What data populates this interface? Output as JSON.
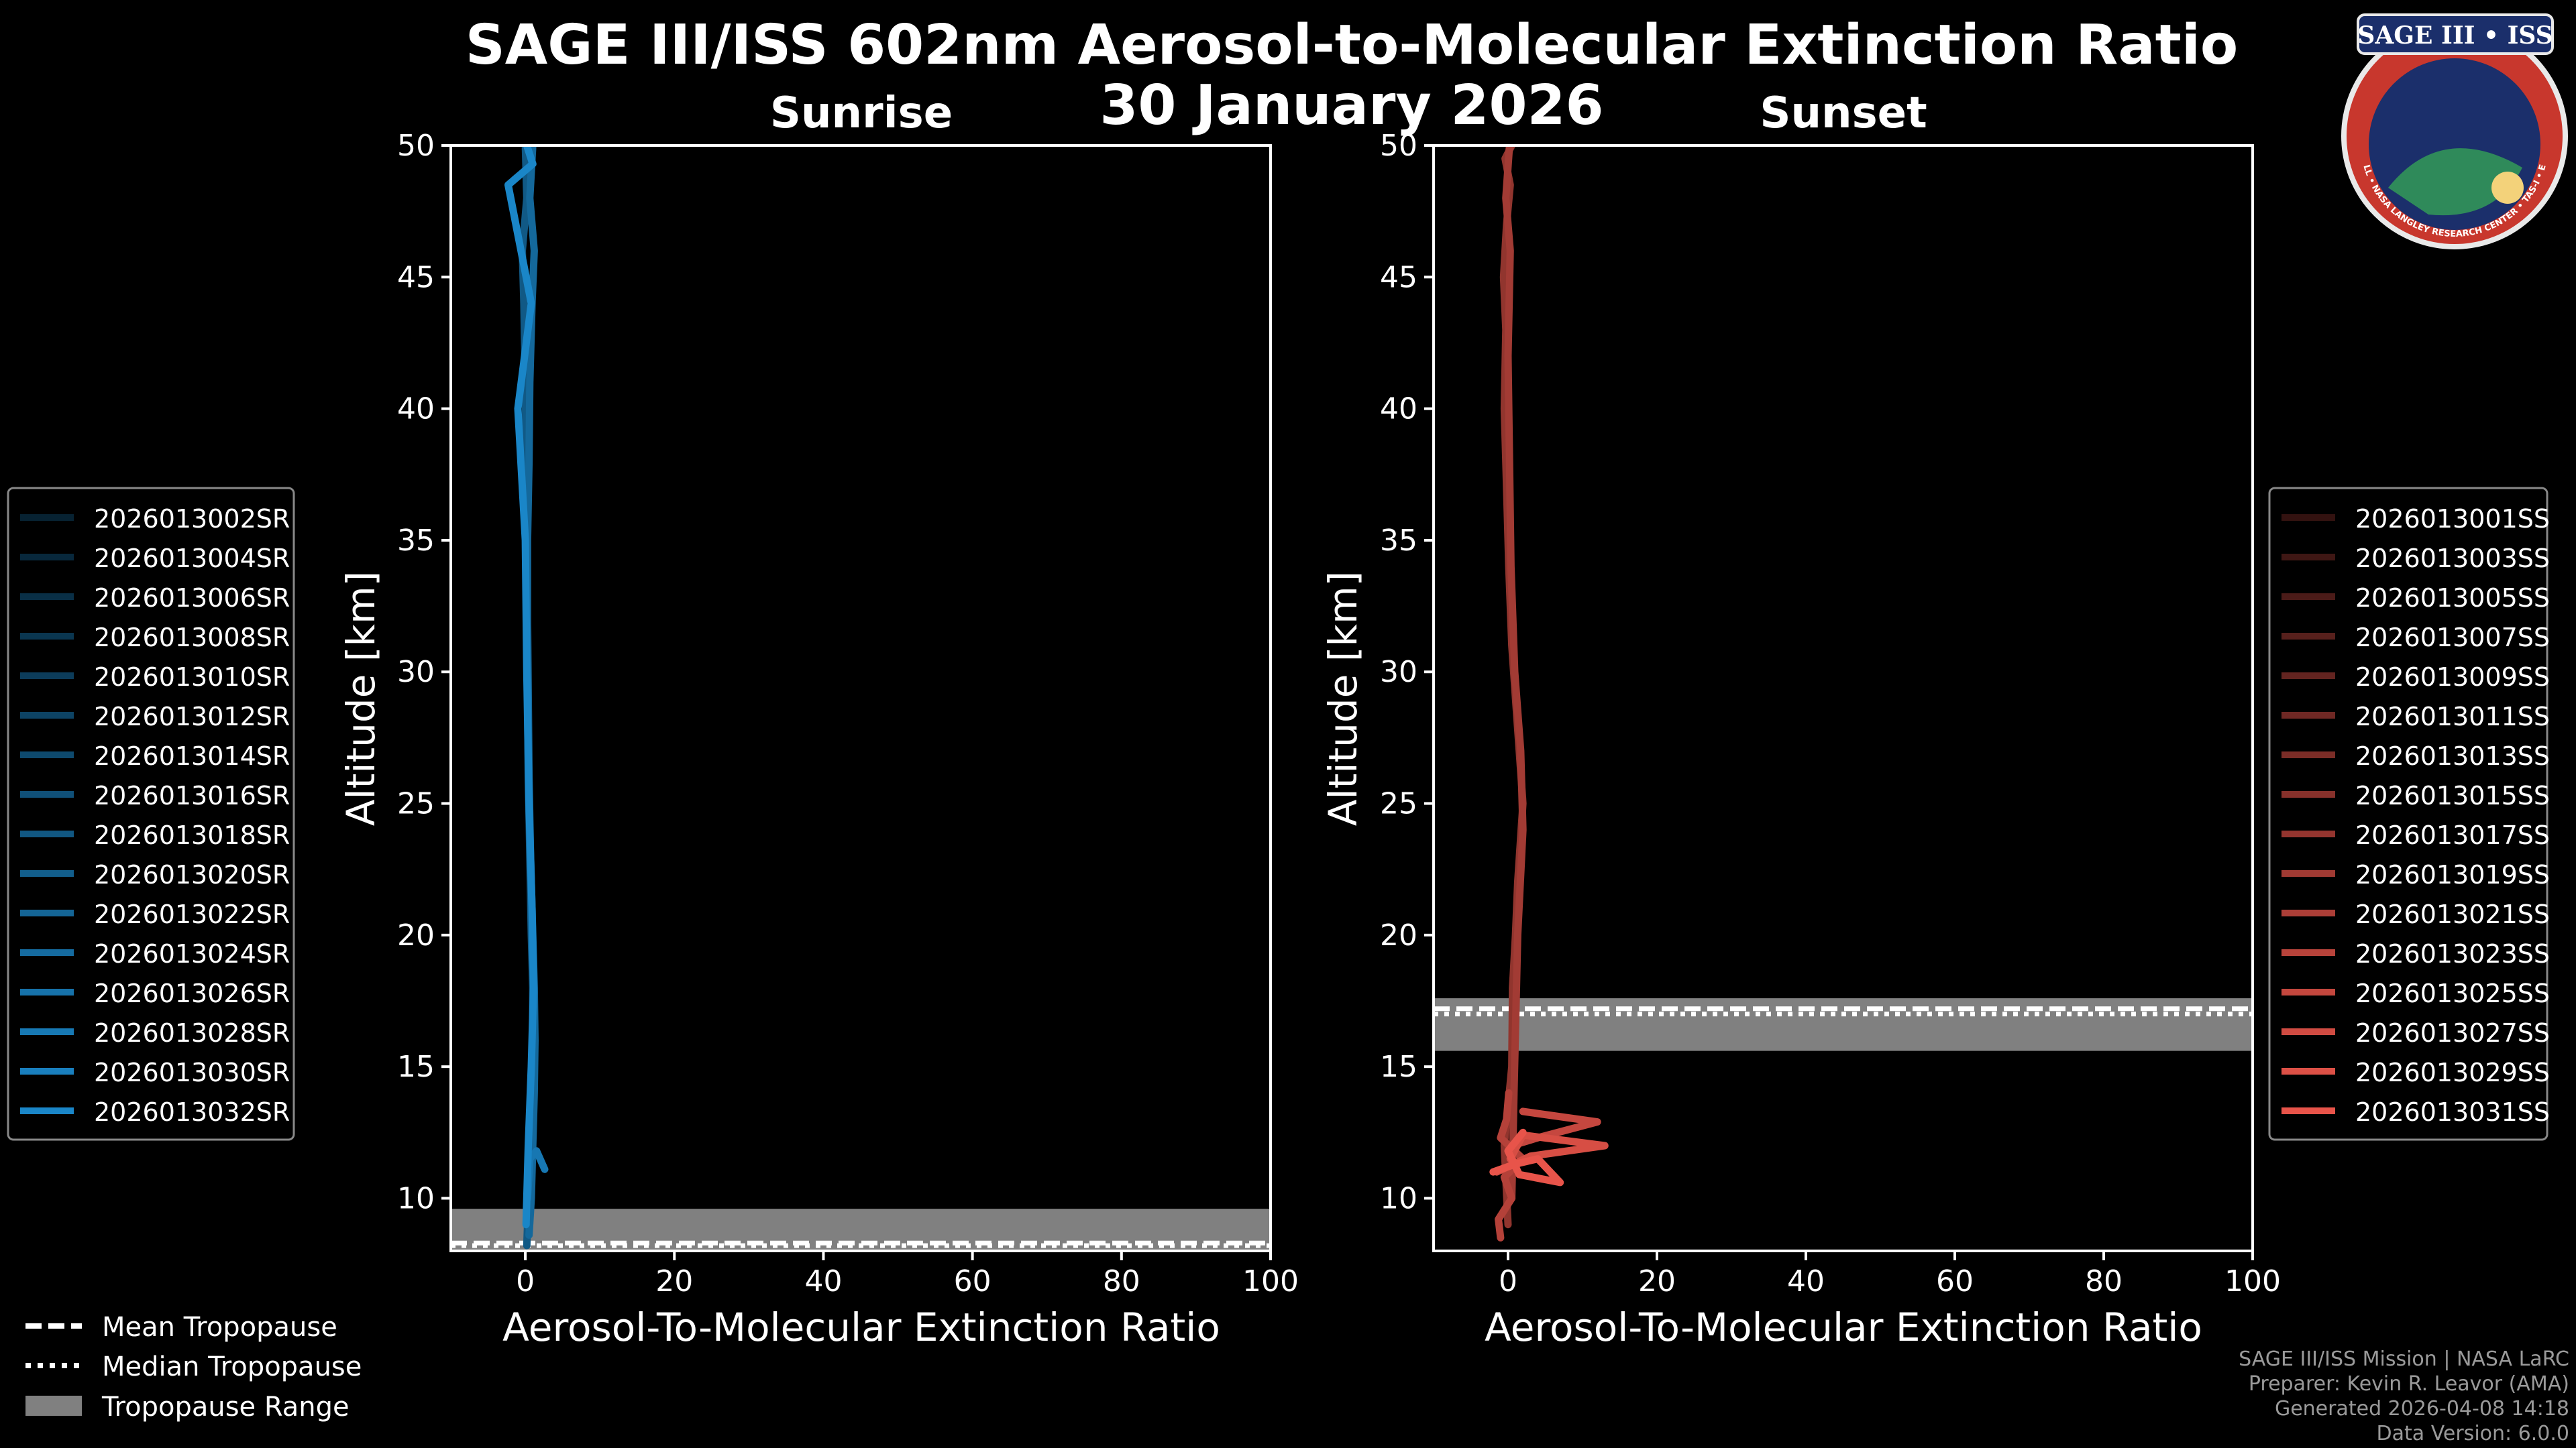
{
  "header": {
    "title": "SAGE III/ISS 602nm Aerosol-to-Molecular Extinction Ratio",
    "date": "30 January 2026"
  },
  "logo": {
    "text": "SAGE III • ISS",
    "ring_text": "BALL • NASA LANGLEY RESEARCH CENTER • TAS-I • ESA"
  },
  "credits": {
    "line1": "SAGE III/ISS Mission | NASA LaRC",
    "line2": "Preparer: Kevin R. Leavor (AMA)",
    "line3": "Generated 2026-04-08 14:18",
    "line4": "Data Version: 6.0.0"
  },
  "tropopause_legend": {
    "mean": "Mean Tropopause",
    "median": "Median Tropopause",
    "range": "Tropopause Range"
  },
  "colors": {
    "sunrise_line": "#1a86c8",
    "sunset_line": "#e8544a",
    "tropopause_range": "#808080"
  },
  "chart_data": [
    {
      "type": "line",
      "title": "Sunrise",
      "xlabel": "Aerosol-To-Molecular Extinction Ratio",
      "ylabel": "Altitude [km]",
      "xlim": [
        -10,
        100
      ],
      "ylim": [
        8,
        50
      ],
      "xticks": [
        0,
        20,
        40,
        60,
        80,
        100
      ],
      "yticks": [
        10,
        15,
        20,
        25,
        30,
        35,
        40,
        45,
        50
      ],
      "grid": false,
      "tropopause": {
        "range": [
          8.0,
          9.6
        ],
        "mean": 8.3,
        "median": 8.2
      },
      "legend": [
        "2026013002SR",
        "2026013004SR",
        "2026013006SR",
        "2026013008SR",
        "2026013010SR",
        "2026013012SR",
        "2026013014SR",
        "2026013016SR",
        "2026013018SR",
        "2026013020SR",
        "2026013022SR",
        "2026013024SR",
        "2026013026SR",
        "2026013028SR",
        "2026013030SR",
        "2026013032SR"
      ],
      "series": [
        {
          "name": "profile-a",
          "x": [
            0.2,
            0.3,
            0.6,
            0.9,
            1.0,
            1.0,
            0.8,
            0.6,
            0.4,
            0.3,
            0.2,
            0.2,
            0.1,
            0.0,
            -0.2,
            -0.4,
            0.2,
            0.0
          ],
          "y": [
            8.2,
            9,
            11,
            14,
            16,
            18,
            20,
            23,
            26,
            29,
            32,
            35,
            38,
            41,
            44,
            46,
            48,
            50
          ]
        },
        {
          "name": "profile-b",
          "x": [
            0.5,
            0.8,
            1.0,
            1.2,
            1.3,
            1.2,
            1.0,
            0.7,
            0.5,
            0.4,
            0.3,
            0.3,
            0.5,
            0.6,
            0.9,
            1.2,
            0.6,
            1.0
          ],
          "y": [
            8.6,
            10,
            12,
            14,
            16,
            18,
            20,
            23,
            26,
            29,
            32,
            35,
            38,
            41,
            44,
            46,
            48,
            50
          ]
        },
        {
          "name": "profile-c",
          "x": [
            0.3,
            0.6,
            1.5,
            2.6
          ],
          "y": [
            10,
            11.5,
            11.8,
            11.1
          ]
        },
        {
          "name": "profile-d",
          "x": [
            0.1,
            0.4,
            0.8,
            1.1,
            0.9,
            0.5,
            0.2,
            0.0,
            -1.0,
            0.8,
            -2.3,
            1.0,
            0.2
          ],
          "y": [
            9,
            12,
            15,
            18,
            21,
            25,
            30,
            35,
            40,
            44,
            48.5,
            49.3,
            50
          ]
        }
      ]
    },
    {
      "type": "line",
      "title": "Sunset",
      "xlabel": "Aerosol-To-Molecular Extinction Ratio",
      "ylabel": "Altitude [km]",
      "xlim": [
        -10,
        100
      ],
      "ylim": [
        8,
        50
      ],
      "xticks": [
        0,
        20,
        40,
        60,
        80,
        100
      ],
      "yticks": [
        10,
        15,
        20,
        25,
        30,
        35,
        40,
        45,
        50
      ],
      "grid": false,
      "tropopause": {
        "range": [
          15.6,
          17.6
        ],
        "mean": 17.2,
        "median": 17.0
      },
      "legend": [
        "2026013001SS",
        "2026013003SS",
        "2026013005SS",
        "2026013007SS",
        "2026013009SS",
        "2026013011SS",
        "2026013013SS",
        "2026013015SS",
        "2026013017SS",
        "2026013019SS",
        "2026013021SS",
        "2026013023SS",
        "2026013025SS",
        "2026013027SS",
        "2026013029SS",
        "2026013031SS"
      ],
      "series": [
        {
          "name": "profile-a",
          "x": [
            0.0,
            -0.5,
            0.5,
            0.6,
            1.0,
            1.3,
            2.0,
            1.5,
            1.0,
            0.5,
            0.1,
            -0.2,
            -0.5,
            -0.3,
            -0.6,
            -0.2,
            0.3,
            -0.4,
            0.5
          ],
          "y": [
            9,
            12,
            15,
            18,
            20,
            22,
            25,
            27,
            29,
            31,
            34,
            37,
            40,
            43,
            45,
            47,
            48.5,
            49.5,
            50
          ]
        },
        {
          "name": "profile-b",
          "x": [
            0.5,
            0.8,
            1.3,
            2.0,
            1.7,
            0.9,
            0.4,
            0.2,
            0.0,
            0.3,
            -0.3,
            0.2
          ],
          "y": [
            10,
            14,
            20,
            24,
            27,
            30,
            34,
            38,
            42,
            46,
            48,
            50
          ]
        },
        {
          "name": "profile-c",
          "x": [
            -1.0,
            -1.3,
            0.5,
            -0.5,
            2.0,
            -1.0,
            -0.2,
            0.1
          ],
          "y": [
            8.5,
            9.2,
            10.0,
            10.8,
            11.5,
            12.3,
            13.0,
            14.0
          ]
        },
        {
          "name": "profile-d",
          "x": [
            0.5,
            4.0,
            12.0,
            2.0
          ],
          "y": [
            12.0,
            12.3,
            12.9,
            13.3
          ]
        },
        {
          "name": "profile-e",
          "x": [
            0.3,
            2.0,
            13.0,
            3.0,
            -1.5
          ],
          "y": [
            11.5,
            12.4,
            12.0,
            11.6,
            11.0
          ]
        },
        {
          "name": "profile-f",
          "x": [
            -2.0,
            1.0,
            4.0,
            7.0,
            1.5,
            0.0,
            2.0
          ],
          "y": [
            11.0,
            11.3,
            11.5,
            10.6,
            10.9,
            11.8,
            12.5
          ]
        }
      ]
    }
  ]
}
